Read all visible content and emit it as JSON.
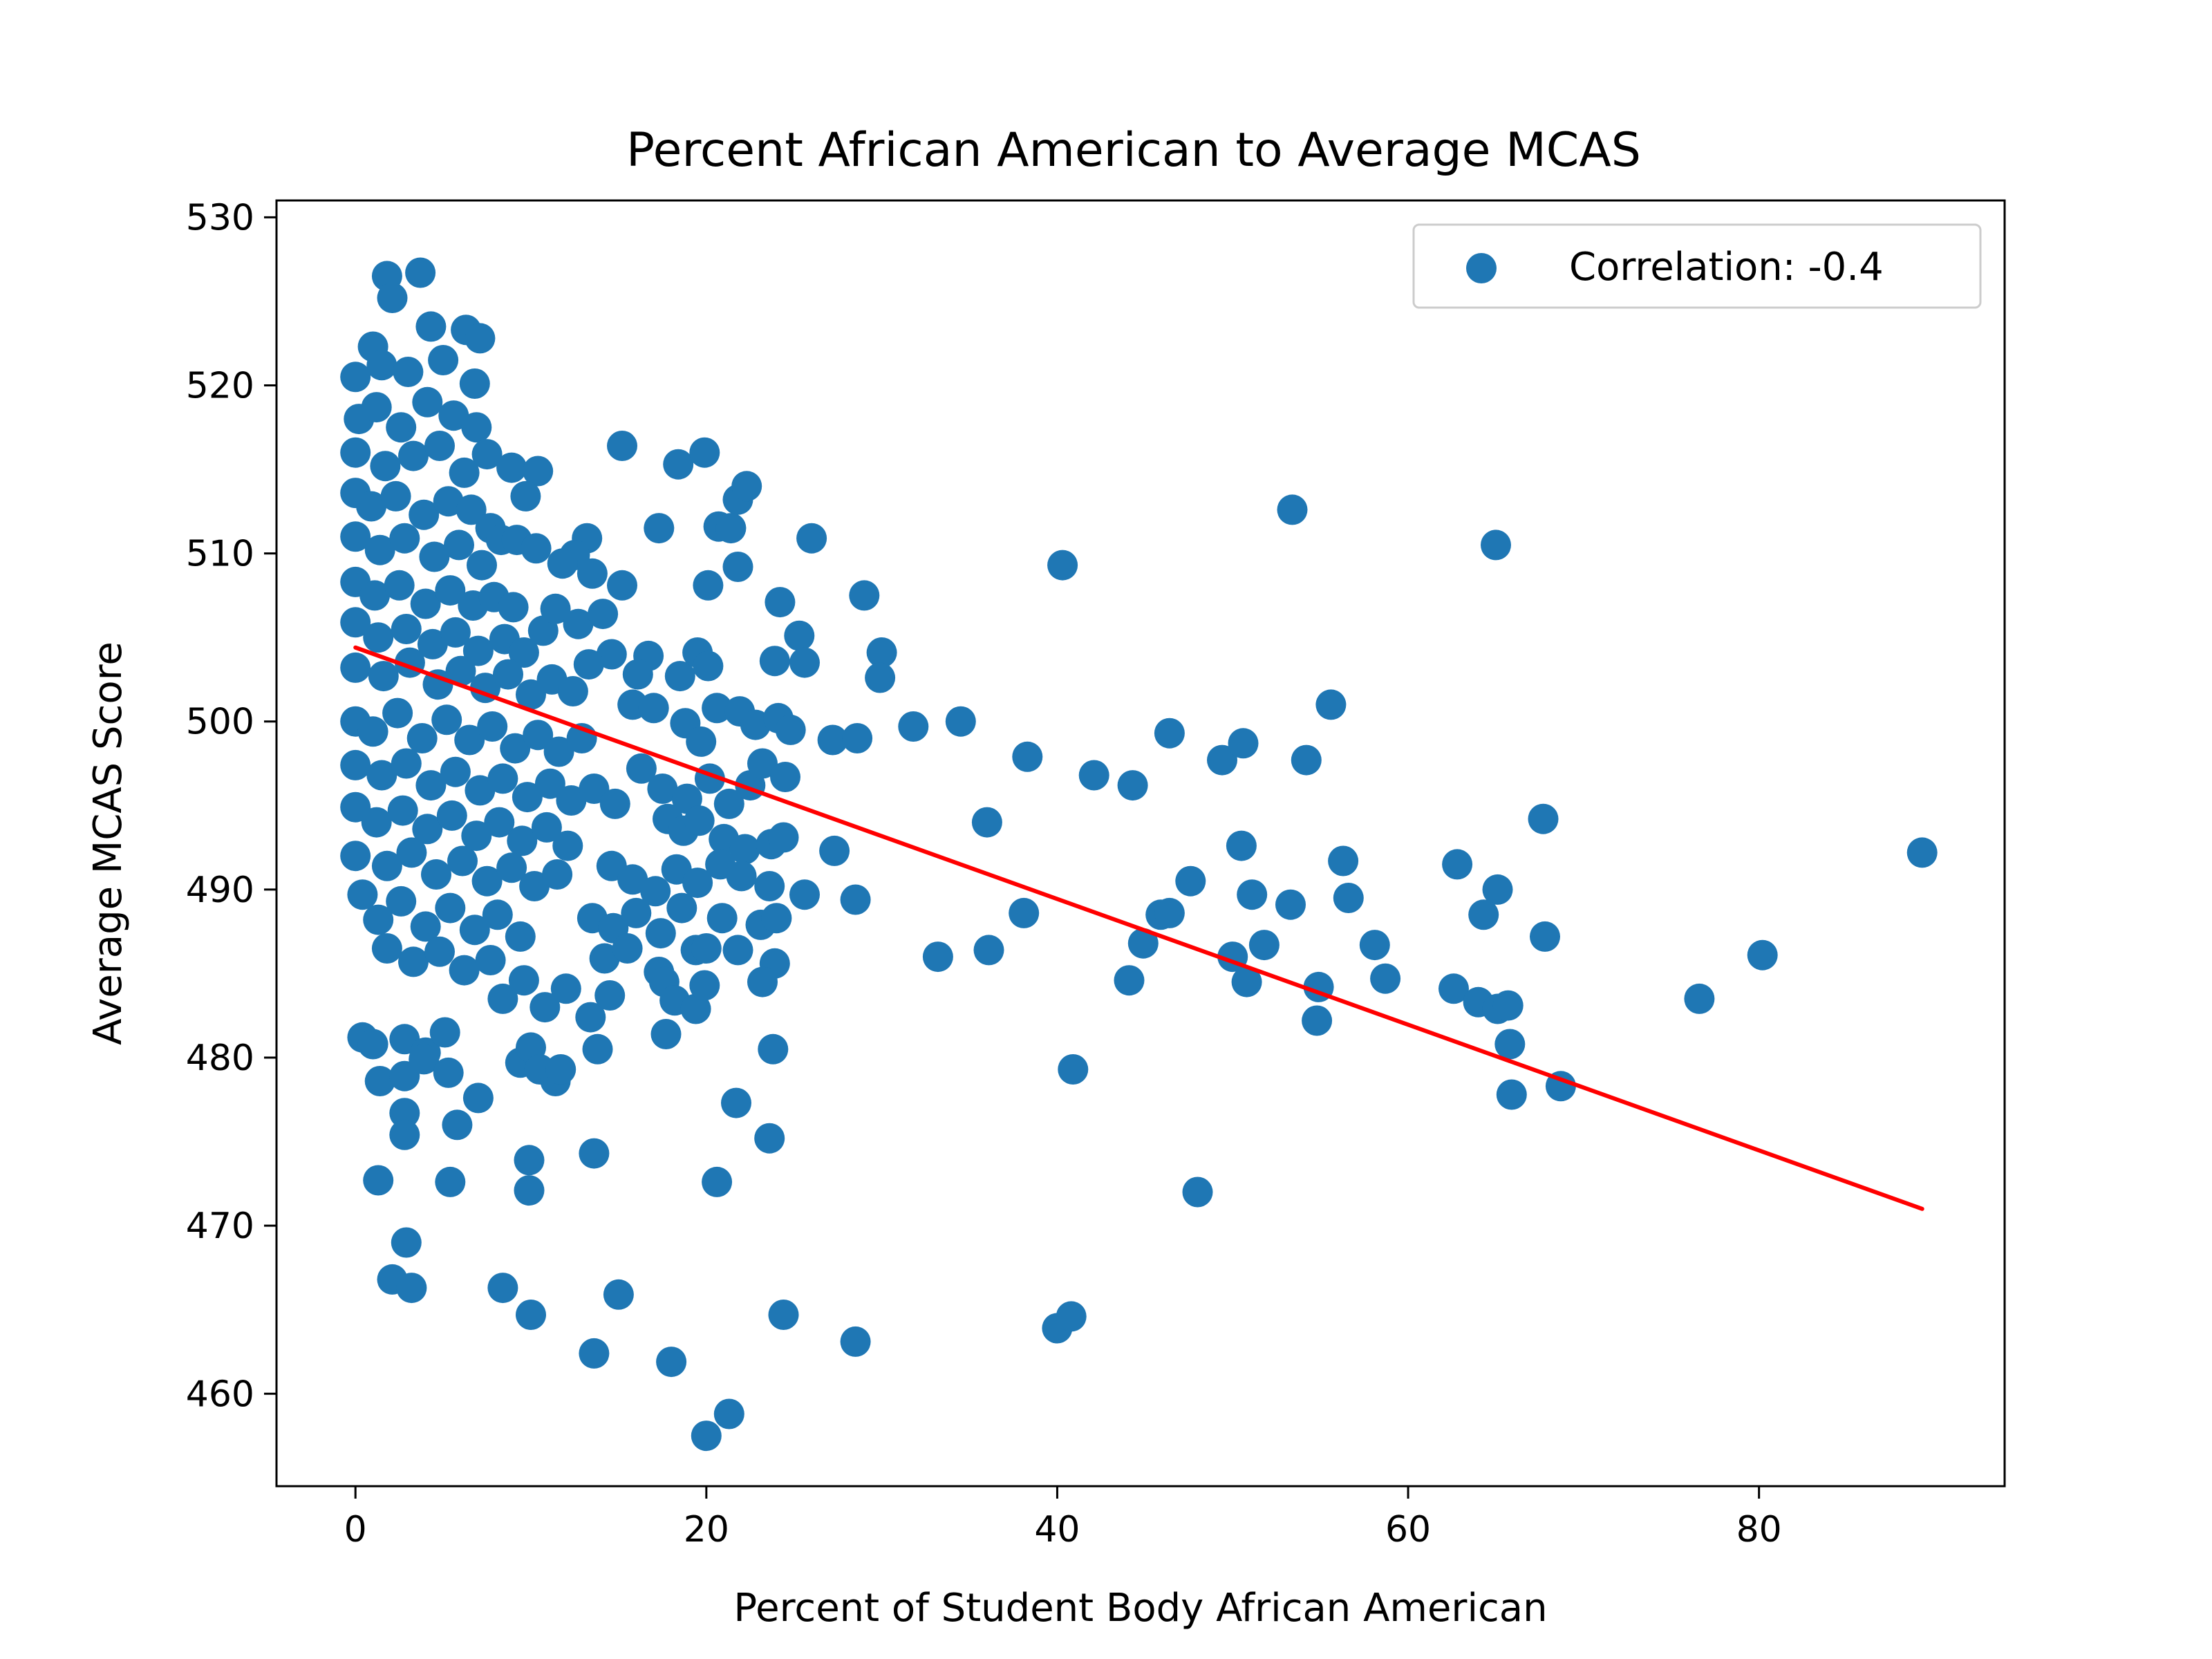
{
  "chart_data": {
    "type": "scatter",
    "title": "Percent African American to Average MCAS",
    "xlabel": "Percent of Student Body African American",
    "ylabel": "Average MCAS Score",
    "xlim": [
      -4.5,
      94
    ],
    "ylim": [
      454.5,
      531
    ],
    "xticks": [
      0,
      20,
      40,
      60,
      80
    ],
    "yticks": [
      460,
      470,
      480,
      490,
      500,
      510,
      520,
      530
    ],
    "grid": false,
    "legend": {
      "placement": "top-right",
      "label": "Correlation: -0.4"
    },
    "colors": {
      "points": "#1f77b4",
      "fit_line": "#ff0000"
    },
    "series": [
      {
        "name": "Correlation: -0.4",
        "points": [
          [
            1.8,
            526.5
          ],
          [
            3.7,
            526.7
          ],
          [
            2.1,
            525.2
          ],
          [
            1.0,
            522.3
          ],
          [
            4.3,
            523.5
          ],
          [
            6.3,
            523.3
          ],
          [
            7.1,
            522.8
          ],
          [
            0.0,
            520.5
          ],
          [
            1.5,
            521.2
          ],
          [
            3.0,
            520.8
          ],
          [
            5.0,
            521.5
          ],
          [
            6.8,
            520.1
          ],
          [
            0.2,
            518.0
          ],
          [
            1.2,
            518.7
          ],
          [
            2.6,
            517.5
          ],
          [
            4.1,
            519.0
          ],
          [
            5.6,
            518.2
          ],
          [
            6.9,
            517.5
          ],
          [
            0.0,
            516.0
          ],
          [
            1.7,
            515.2
          ],
          [
            3.3,
            515.8
          ],
          [
            4.8,
            516.4
          ],
          [
            6.2,
            514.8
          ],
          [
            7.5,
            515.9
          ],
          [
            0.0,
            513.6
          ],
          [
            0.9,
            512.8
          ],
          [
            2.3,
            513.4
          ],
          [
            3.9,
            512.3
          ],
          [
            5.3,
            513.1
          ],
          [
            6.6,
            512.6
          ],
          [
            7.7,
            511.5
          ],
          [
            0.0,
            511.0
          ],
          [
            1.4,
            510.2
          ],
          [
            2.8,
            510.9
          ],
          [
            4.5,
            509.8
          ],
          [
            5.9,
            510.5
          ],
          [
            7.2,
            509.3
          ],
          [
            8.3,
            510.8
          ],
          [
            0.0,
            508.3
          ],
          [
            1.1,
            507.5
          ],
          [
            2.5,
            508.1
          ],
          [
            4.0,
            507.0
          ],
          [
            5.4,
            507.8
          ],
          [
            6.7,
            506.9
          ],
          [
            7.9,
            507.4
          ],
          [
            9.0,
            506.8
          ],
          [
            0.0,
            505.9
          ],
          [
            1.3,
            505.0
          ],
          [
            2.9,
            505.5
          ],
          [
            4.4,
            504.6
          ],
          [
            5.7,
            505.3
          ],
          [
            7.0,
            504.2
          ],
          [
            8.5,
            504.9
          ],
          [
            9.6,
            504.1
          ],
          [
            10.7,
            505.4
          ],
          [
            0.0,
            503.2
          ],
          [
            1.6,
            502.7
          ],
          [
            3.1,
            503.5
          ],
          [
            4.7,
            502.2
          ],
          [
            6.0,
            503.0
          ],
          [
            7.4,
            502.0
          ],
          [
            8.7,
            502.8
          ],
          [
            10.0,
            501.6
          ],
          [
            11.2,
            502.5
          ],
          [
            12.4,
            501.8
          ],
          [
            0.0,
            500.0
          ],
          [
            1.0,
            499.4
          ],
          [
            2.4,
            500.5
          ],
          [
            3.8,
            499.0
          ],
          [
            5.2,
            500.1
          ],
          [
            6.5,
            498.9
          ],
          [
            7.8,
            499.7
          ],
          [
            9.1,
            498.4
          ],
          [
            10.4,
            499.2
          ],
          [
            11.6,
            498.2
          ],
          [
            12.9,
            499.0
          ],
          [
            0.0,
            497.4
          ],
          [
            1.5,
            496.8
          ],
          [
            2.9,
            497.5
          ],
          [
            4.3,
            496.2
          ],
          [
            5.7,
            497.0
          ],
          [
            7.1,
            495.9
          ],
          [
            8.4,
            496.6
          ],
          [
            9.8,
            495.5
          ],
          [
            11.1,
            496.3
          ],
          [
            12.3,
            495.3
          ],
          [
            13.6,
            496.0
          ],
          [
            14.8,
            495.1
          ],
          [
            0.0,
            494.9
          ],
          [
            1.2,
            494.0
          ],
          [
            2.7,
            494.7
          ],
          [
            4.1,
            493.6
          ],
          [
            5.5,
            494.4
          ],
          [
            6.9,
            493.2
          ],
          [
            8.2,
            494.0
          ],
          [
            9.5,
            492.9
          ],
          [
            10.9,
            493.7
          ],
          [
            12.1,
            492.6
          ],
          [
            0.0,
            492.0
          ],
          [
            1.8,
            491.4
          ],
          [
            3.2,
            492.2
          ],
          [
            4.6,
            490.9
          ],
          [
            6.1,
            491.7
          ],
          [
            7.5,
            490.5
          ],
          [
            8.9,
            491.3
          ],
          [
            10.2,
            490.2
          ],
          [
            11.5,
            490.9
          ],
          [
            0.4,
            489.7
          ],
          [
            1.3,
            488.2
          ],
          [
            2.6,
            489.3
          ],
          [
            4.0,
            487.8
          ],
          [
            5.4,
            488.9
          ],
          [
            6.8,
            487.6
          ],
          [
            8.1,
            488.5
          ],
          [
            9.4,
            487.2
          ],
          [
            1.8,
            486.5
          ],
          [
            3.3,
            485.7
          ],
          [
            4.8,
            486.3
          ],
          [
            6.2,
            485.2
          ],
          [
            7.7,
            485.8
          ],
          [
            0.4,
            481.2
          ],
          [
            1.0,
            480.8
          ],
          [
            2.8,
            481.1
          ],
          [
            4.0,
            480.3
          ],
          [
            5.1,
            481.5
          ],
          [
            1.4,
            478.6
          ],
          [
            2.8,
            478.9
          ],
          [
            3.9,
            479.9
          ],
          [
            5.3,
            479.1
          ],
          [
            2.8,
            476.7
          ],
          [
            2.8,
            475.4
          ],
          [
            5.8,
            476.0
          ],
          [
            1.3,
            472.7
          ],
          [
            5.4,
            472.6
          ],
          [
            2.9,
            469.0
          ],
          [
            2.1,
            466.8
          ],
          [
            3.2,
            466.3
          ],
          [
            8.4,
            466.3
          ],
          [
            10.0,
            464.7
          ],
          [
            13.6,
            462.4
          ],
          [
            15.0,
            465.9
          ],
          [
            18.0,
            461.9
          ],
          [
            20.0,
            457.5
          ],
          [
            21.3,
            458.8
          ],
          [
            24.4,
            464.7
          ],
          [
            28.5,
            463.1
          ],
          [
            40.0,
            463.9
          ],
          [
            40.8,
            464.6
          ],
          [
            8.9,
            515.1
          ],
          [
            10.4,
            514.9
          ],
          [
            9.7,
            513.4
          ],
          [
            15.2,
            516.4
          ],
          [
            18.4,
            515.3
          ],
          [
            19.9,
            516.0
          ],
          [
            21.8,
            513.2
          ],
          [
            22.3,
            514.0
          ],
          [
            17.3,
            511.5
          ],
          [
            20.7,
            511.6
          ],
          [
            21.4,
            511.5
          ],
          [
            26.0,
            510.9
          ],
          [
            9.2,
            510.8
          ],
          [
            10.3,
            510.3
          ],
          [
            13.2,
            510.9
          ],
          [
            12.5,
            509.9
          ],
          [
            11.8,
            509.4
          ],
          [
            13.5,
            508.8
          ],
          [
            15.2,
            508.1
          ],
          [
            20.1,
            508.1
          ],
          [
            21.8,
            509.2
          ],
          [
            24.2,
            507.1
          ],
          [
            29.0,
            507.5
          ],
          [
            40.3,
            509.3
          ],
          [
            53.4,
            512.6
          ],
          [
            65.0,
            510.5
          ],
          [
            11.4,
            506.7
          ],
          [
            12.7,
            505.8
          ],
          [
            14.1,
            506.4
          ],
          [
            14.6,
            504.0
          ],
          [
            13.3,
            503.4
          ],
          [
            16.7,
            503.9
          ],
          [
            16.1,
            502.8
          ],
          [
            18.5,
            502.7
          ],
          [
            19.5,
            504.1
          ],
          [
            20.1,
            503.3
          ],
          [
            23.9,
            503.6
          ],
          [
            25.3,
            505.1
          ],
          [
            25.6,
            503.5
          ],
          [
            30.0,
            504.1
          ],
          [
            29.9,
            502.6
          ],
          [
            15.8,
            501.0
          ],
          [
            17.0,
            500.8
          ],
          [
            18.8,
            499.9
          ],
          [
            19.7,
            498.8
          ],
          [
            20.6,
            500.8
          ],
          [
            21.9,
            500.6
          ],
          [
            22.8,
            499.8
          ],
          [
            24.1,
            500.2
          ],
          [
            24.8,
            499.5
          ],
          [
            27.2,
            498.9
          ],
          [
            28.6,
            499.0
          ],
          [
            31.8,
            499.7
          ],
          [
            34.5,
            500.0
          ],
          [
            38.3,
            497.9
          ],
          [
            42.1,
            496.8
          ],
          [
            44.3,
            496.2
          ],
          [
            46.4,
            499.3
          ],
          [
            49.4,
            497.7
          ],
          [
            50.6,
            498.7
          ],
          [
            54.2,
            497.7
          ],
          [
            55.6,
            501.0
          ],
          [
            16.3,
            497.2
          ],
          [
            17.5,
            496.0
          ],
          [
            18.9,
            495.4
          ],
          [
            20.2,
            496.6
          ],
          [
            21.3,
            495.1
          ],
          [
            22.5,
            496.2
          ],
          [
            23.2,
            497.5
          ],
          [
            24.5,
            496.7
          ],
          [
            17.8,
            494.2
          ],
          [
            18.7,
            493.5
          ],
          [
            19.6,
            494.1
          ],
          [
            21.0,
            493.0
          ],
          [
            22.2,
            492.4
          ],
          [
            23.7,
            492.7
          ],
          [
            24.4,
            493.1
          ],
          [
            27.3,
            492.3
          ],
          [
            36.0,
            494.0
          ],
          [
            50.5,
            492.6
          ],
          [
            56.3,
            491.7
          ],
          [
            62.8,
            491.5
          ],
          [
            65.1,
            490.0
          ],
          [
            67.7,
            494.2
          ],
          [
            89.3,
            492.2
          ],
          [
            14.6,
            491.4
          ],
          [
            15.8,
            490.6
          ],
          [
            17.1,
            489.9
          ],
          [
            18.3,
            491.2
          ],
          [
            19.5,
            490.4
          ],
          [
            20.8,
            491.5
          ],
          [
            22.0,
            490.8
          ],
          [
            23.6,
            490.2
          ],
          [
            25.6,
            489.7
          ],
          [
            28.5,
            489.4
          ],
          [
            47.6,
            490.5
          ],
          [
            51.1,
            489.7
          ],
          [
            53.3,
            489.1
          ],
          [
            56.6,
            489.5
          ],
          [
            13.5,
            488.3
          ],
          [
            14.7,
            487.7
          ],
          [
            16.0,
            488.6
          ],
          [
            17.4,
            487.4
          ],
          [
            18.6,
            488.9
          ],
          [
            20.9,
            488.3
          ],
          [
            23.1,
            487.9
          ],
          [
            24.0,
            488.3
          ],
          [
            38.1,
            488.6
          ],
          [
            45.9,
            488.5
          ],
          [
            46.4,
            488.6
          ],
          [
            64.3,
            488.5
          ],
          [
            67.8,
            487.2
          ],
          [
            14.2,
            485.9
          ],
          [
            15.5,
            486.5
          ],
          [
            17.3,
            485.1
          ],
          [
            19.4,
            486.4
          ],
          [
            20.0,
            486.5
          ],
          [
            21.8,
            486.4
          ],
          [
            23.9,
            485.6
          ],
          [
            33.2,
            486.0
          ],
          [
            36.1,
            486.4
          ],
          [
            44.9,
            486.8
          ],
          [
            50.0,
            486.0
          ],
          [
            51.8,
            486.7
          ],
          [
            58.1,
            486.7
          ],
          [
            80.2,
            486.1
          ],
          [
            8.4,
            483.5
          ],
          [
            9.6,
            484.6
          ],
          [
            10.8,
            483.0
          ],
          [
            12.0,
            484.1
          ],
          [
            13.4,
            482.4
          ],
          [
            14.5,
            483.7
          ],
          [
            17.6,
            484.5
          ],
          [
            18.2,
            483.4
          ],
          [
            19.4,
            482.9
          ],
          [
            19.9,
            484.3
          ],
          [
            23.2,
            484.5
          ],
          [
            44.1,
            484.6
          ],
          [
            50.8,
            484.5
          ],
          [
            54.9,
            484.2
          ],
          [
            58.7,
            484.7
          ],
          [
            62.6,
            484.1
          ],
          [
            64.0,
            483.3
          ],
          [
            65.1,
            482.9
          ],
          [
            65.7,
            483.1
          ],
          [
            76.6,
            483.5
          ],
          [
            9.4,
            479.7
          ],
          [
            10.0,
            480.6
          ],
          [
            10.5,
            479.3
          ],
          [
            11.4,
            478.6
          ],
          [
            11.7,
            479.3
          ],
          [
            13.8,
            480.5
          ],
          [
            17.7,
            481.4
          ],
          [
            23.8,
            480.5
          ],
          [
            40.9,
            479.3
          ],
          [
            54.8,
            482.2
          ],
          [
            65.8,
            480.8
          ],
          [
            65.9,
            477.8
          ],
          [
            68.7,
            478.3
          ],
          [
            7.0,
            477.6
          ],
          [
            21.7,
            477.3
          ],
          [
            9.9,
            473.9
          ],
          [
            13.6,
            474.3
          ],
          [
            23.6,
            475.2
          ],
          [
            9.9,
            472.1
          ],
          [
            20.6,
            472.6
          ],
          [
            48.0,
            472.0
          ]
        ]
      }
    ],
    "fit_line": {
      "x": [
        0,
        89.3
      ],
      "y": [
        504.4,
        471.0
      ]
    }
  }
}
